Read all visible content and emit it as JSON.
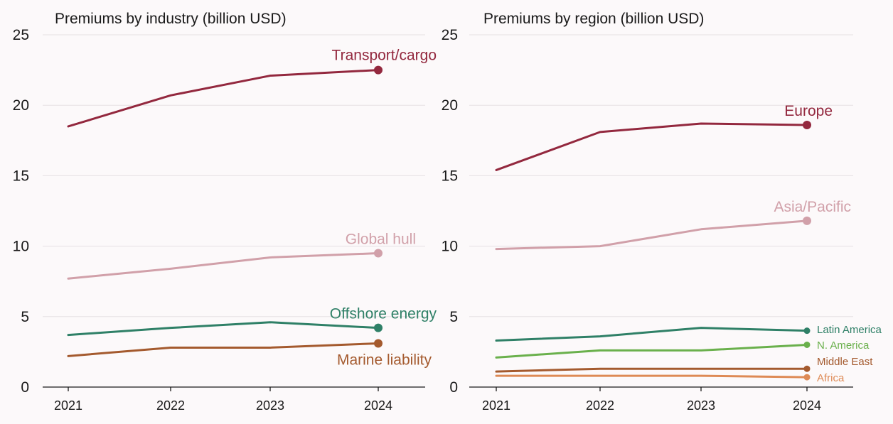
{
  "colors": {
    "transport": "#93283e",
    "global_hull": "#d1a0a9",
    "offshore": "#2f8067",
    "marine": "#a45a2e",
    "europe": "#93283e",
    "asia": "#d1a0a9",
    "latin_america": "#2f8067",
    "n_america": "#6ab04c",
    "middle_east": "#a45a2e",
    "africa": "#de8a55"
  },
  "chart_data": [
    {
      "type": "line",
      "title": "Premiums by industry (billion USD)",
      "x": [
        "2021",
        "2022",
        "2023",
        "2024"
      ],
      "ylim": [
        0,
        25
      ],
      "yticks": [
        "0",
        "5",
        "10",
        "15",
        "20",
        "25"
      ],
      "grid": true,
      "legend": "direct labels at line ends",
      "series": [
        {
          "name": "Transport/cargo",
          "values": [
            18.5,
            20.7,
            22.1,
            22.5
          ],
          "color": "#93283e"
        },
        {
          "name": "Global hull",
          "values": [
            7.7,
            8.4,
            9.2,
            9.5
          ],
          "color": "#d1a0a9"
        },
        {
          "name": "Offshore energy",
          "values": [
            3.7,
            4.2,
            4.6,
            4.2
          ],
          "color": "#2f8067"
        },
        {
          "name": "Marine liability",
          "values": [
            2.2,
            2.8,
            2.8,
            3.1
          ],
          "color": "#a45a2e"
        }
      ]
    },
    {
      "type": "line",
      "title": "Premiums by region (billion USD)",
      "x": [
        "2021",
        "2022",
        "2023",
        "2024"
      ],
      "ylim": [
        0,
        25
      ],
      "yticks": [
        "0",
        "5",
        "10",
        "15",
        "20",
        "25"
      ],
      "grid": true,
      "legend": "direct labels at line ends",
      "series": [
        {
          "name": "Europe",
          "values": [
            15.4,
            18.1,
            18.7,
            18.6
          ],
          "color": "#93283e"
        },
        {
          "name": "Asia/Pacific",
          "values": [
            9.8,
            10.0,
            11.2,
            11.8
          ],
          "color": "#d1a0a9"
        },
        {
          "name": "Latin America",
          "values": [
            3.3,
            3.6,
            4.2,
            4.0
          ],
          "color": "#2f8067"
        },
        {
          "name": "N. America",
          "values": [
            2.1,
            2.6,
            2.6,
            3.0
          ],
          "color": "#6ab04c"
        },
        {
          "name": "Middle East",
          "values": [
            1.1,
            1.3,
            1.3,
            1.3
          ],
          "color": "#a45a2e"
        },
        {
          "name": "Africa",
          "values": [
            0.8,
            0.8,
            0.8,
            0.7
          ],
          "color": "#de8a55"
        }
      ]
    }
  ]
}
